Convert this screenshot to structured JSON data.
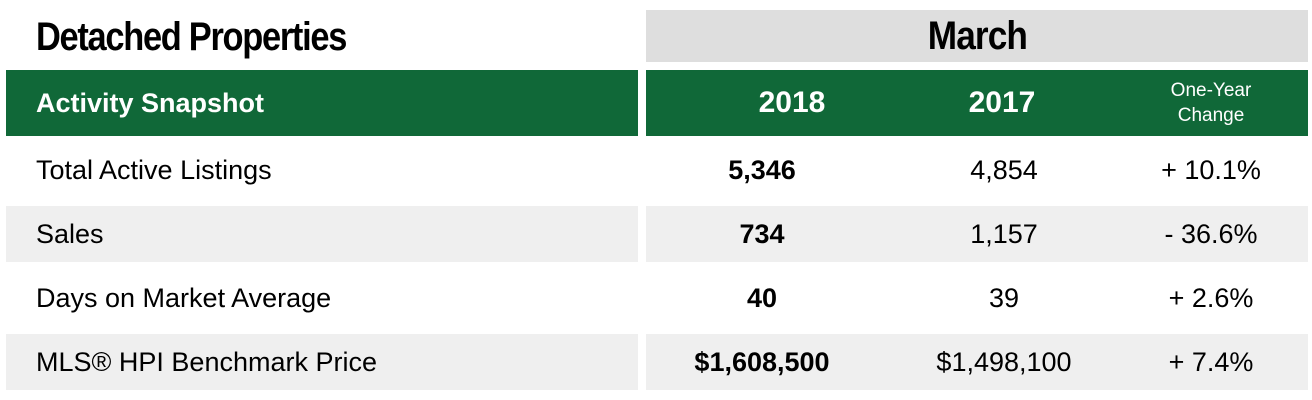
{
  "title": "Detached Properties",
  "period": "March",
  "header": {
    "label": "Activity Snapshot",
    "col_current": "2018",
    "col_previous": "2017",
    "col_change_line1": "One-Year",
    "col_change_line2": "Change"
  },
  "rows": [
    {
      "label": "Total Active Listings",
      "current": "5,346",
      "previous": "4,854",
      "change": "+ 10.1%"
    },
    {
      "label": "Sales",
      "current": "734",
      "previous": "1,157",
      "change": "- 36.6%"
    },
    {
      "label": "Days on Market Average",
      "current": "40",
      "previous": "39",
      "change": "+ 2.6%"
    },
    {
      "label": "MLS® HPI Benchmark Price",
      "current": "$1,608,500",
      "previous": "$1,498,100",
      "change": "+ 7.4%"
    }
  ],
  "colors": {
    "header_green": "#106838",
    "month_gray": "#dedede",
    "row_shade": "#efefef"
  },
  "chart_data": {
    "type": "table",
    "title": "Detached Properties",
    "period": "March",
    "columns": [
      "Activity Snapshot",
      "2018",
      "2017",
      "One-Year Change"
    ],
    "rows": [
      [
        "Total Active Listings",
        "5,346",
        "4,854",
        "+ 10.1%"
      ],
      [
        "Sales",
        "734",
        "1,157",
        "- 36.6%"
      ],
      [
        "Days on Market Average",
        "40",
        "39",
        "+ 2.6%"
      ],
      [
        "MLS® HPI Benchmark Price",
        "$1,608,500",
        "$1,498,100",
        "+ 7.4%"
      ]
    ]
  }
}
